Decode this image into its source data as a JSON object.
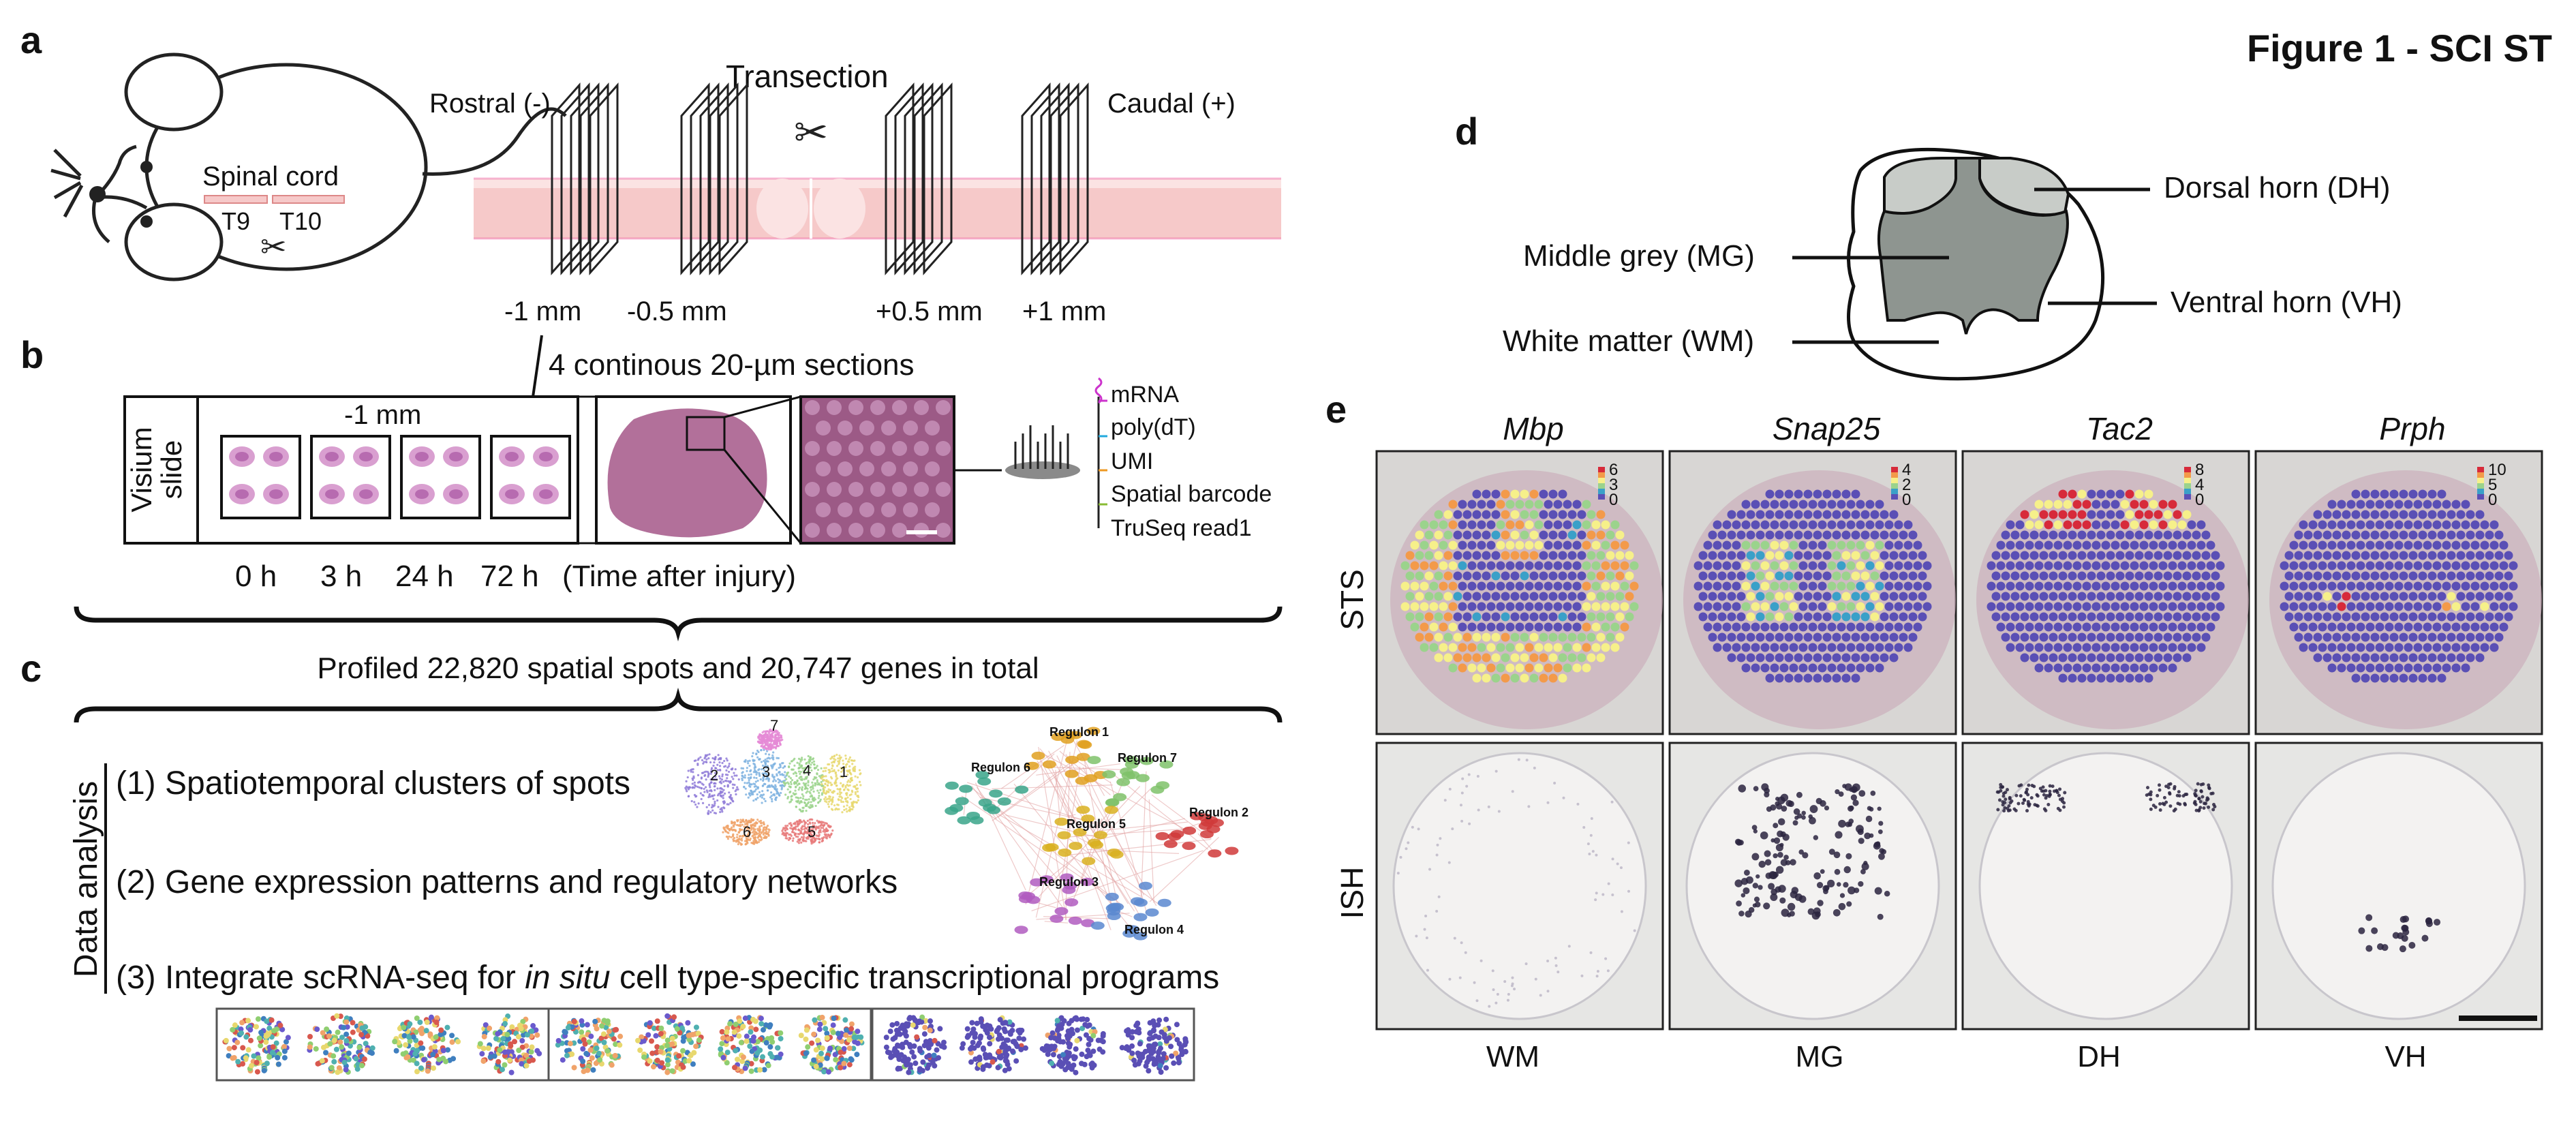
{
  "figure_title": "Figure 1 - SCI ST",
  "panel_labels": {
    "a": "a",
    "b": "b",
    "c": "c",
    "d": "d",
    "e": "e"
  },
  "panel_a": {
    "spinal_cord": "Spinal cord",
    "t9": "T9",
    "t10": "T10",
    "rostral": "Rostral (-)",
    "caudal": "Caudal (+)",
    "transection": "Transection",
    "positions": [
      "-1 mm",
      "-0.5 mm",
      "+0.5 mm",
      "+1 mm"
    ]
  },
  "panel_b": {
    "sections_note": "4 continous 20-µm sections",
    "slide_label_line1": "Visium",
    "slide_label_line2": "slide",
    "slide_position": "-1 mm",
    "timepoints": [
      "0 h",
      "3 h",
      "24 h",
      "72 h"
    ],
    "time_caption": "(Time after injury)",
    "probe_labels": [
      {
        "text": "mRNA",
        "color": "#cc33cc"
      },
      {
        "text": "poly(dT)",
        "color": "#22aadd"
      },
      {
        "text": "UMI",
        "color": "#ee9922"
      },
      {
        "text": "Spatial barcode",
        "color": "#88bb33"
      },
      {
        "text": "TruSeq read1",
        "color": "#111111"
      }
    ]
  },
  "panel_c": {
    "summary": "Profiled 22,820 spatial spots and 20,747 genes in total",
    "side_label": "Data analysis",
    "step1": "(1) Spatiotemporal clusters of spots",
    "step2": "(2) Gene expression patterns and regulatory networks",
    "step3_pre": "(3) Integrate scRNA-seq for ",
    "step3_italic": "in situ",
    "step3_post": " cell type-specific transcriptional programs",
    "umap_cluster_labels": [
      "7",
      "2",
      "3",
      "4",
      "1",
      "6",
      "5"
    ],
    "regulon_labels": [
      {
        "text": "Regulon 1",
        "color": "#e0a020"
      },
      {
        "text": "Regulon 6",
        "color": "#3aa58a"
      },
      {
        "text": "Regulon 7",
        "color": "#7fc26a"
      },
      {
        "text": "Regulon 5",
        "color": "#d9b020"
      },
      {
        "text": "Regulon 2",
        "color": "#d03a3a"
      },
      {
        "text": "Regulon 3",
        "color": "#b05cc0"
      },
      {
        "text": "Regulon 4",
        "color": "#5a88d0"
      }
    ]
  },
  "panel_d": {
    "dorsal_horn": "Dorsal horn (DH)",
    "middle_grey": "Middle grey (MG)",
    "ventral_horn": "Ventral horn (VH)",
    "white_matter": "White matter (WM)"
  },
  "panel_e": {
    "genes": [
      "Mbp",
      "Snap25",
      "Tac2",
      "Prph"
    ],
    "row_labels": [
      "STS",
      "ISH"
    ],
    "region_labels": [
      "WM",
      "MG",
      "DH",
      "VH"
    ],
    "colorbar_ticks": [
      [
        "6",
        "3",
        "0"
      ],
      [
        "4",
        "2",
        "0"
      ],
      [
        "8",
        "4",
        "0"
      ],
      [
        "10",
        "5",
        "0"
      ]
    ]
  },
  "colors": {
    "tissue_pink": "#f6c9c9",
    "he_stain": "#a8608f",
    "spot_background": "#5a4fb5",
    "grey_matter": "#8e9590",
    "dorsal_grey": "#c8ccc8"
  }
}
